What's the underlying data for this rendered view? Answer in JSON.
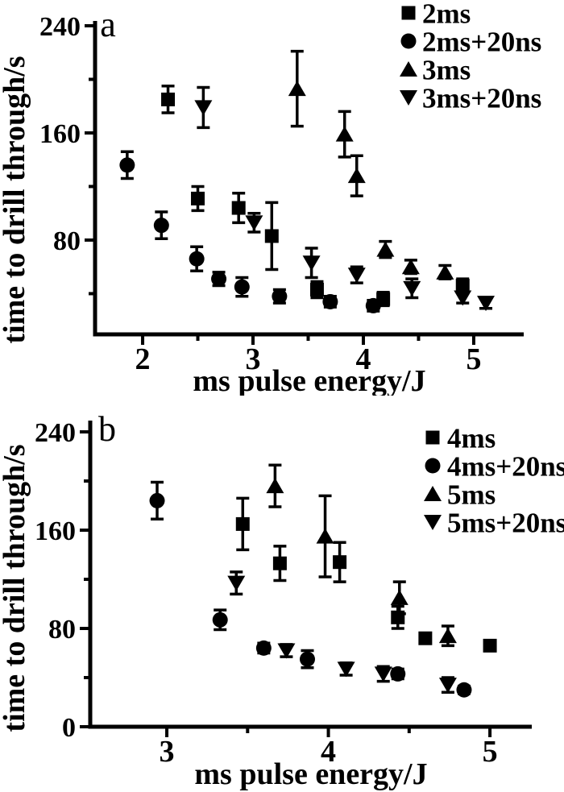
{
  "figure": {
    "background": "#ffffff",
    "ink": "#000000",
    "description_visible_text_only": "",
    "panels": [
      "a",
      "b"
    ]
  },
  "chart_data": [
    {
      "panel_label": "a",
      "type": "scatter",
      "title": "",
      "legend_position": "top-right",
      "axes": {
        "x": {
          "label": "ms pulse energy/J",
          "range": [
            1.569,
            5.453
          ],
          "major_ticks": [
            2,
            3,
            4,
            5
          ],
          "minor_ticks": [
            2.5,
            3.5,
            4.5
          ]
        },
        "y": {
          "label": "time to drill through/s",
          "range": [
            9.6,
            243.6
          ],
          "major_ticks": [
            240,
            160,
            80
          ],
          "minor_ticks": [
            200,
            120,
            40
          ],
          "labeled_ticks": [
            240,
            160,
            80
          ]
        }
      },
      "series": [
        {
          "name": "2ms",
          "marker": "square",
          "points": [
            [
              2.23,
              185,
              10
            ],
            [
              2.5,
              111,
              9
            ],
            [
              2.87,
              104,
              11
            ],
            [
              3.17,
              83,
              25
            ],
            [
              3.58,
              43,
              6
            ],
            [
              4.18,
              36,
              5
            ],
            [
              4.9,
              46,
              5
            ]
          ]
        },
        {
          "name": "2ms+20ns",
          "marker": "circle",
          "points": [
            [
              1.86,
              136,
              10
            ],
            [
              2.17,
              91,
              10
            ],
            [
              2.49,
              66,
              9
            ],
            [
              2.69,
              51,
              5
            ],
            [
              2.9,
              45,
              7
            ],
            [
              3.24,
              38,
              5
            ],
            [
              3.7,
              34,
              4
            ],
            [
              4.09,
              31,
              4
            ]
          ]
        },
        {
          "name": "3ms",
          "marker": "triangle-up",
          "points": [
            [
              3.4,
              193,
              28
            ],
            [
              3.83,
              159,
              17
            ],
            [
              3.94,
              128,
              15
            ],
            [
              4.2,
              73,
              6
            ],
            [
              4.43,
              60,
              5
            ],
            [
              4.74,
              56,
              5
            ]
          ]
        },
        {
          "name": "3ms+20ns",
          "marker": "triangle-down",
          "points": [
            [
              2.55,
              179,
              15
            ],
            [
              3.01,
              93,
              7
            ],
            [
              3.53,
              63,
              11
            ],
            [
              3.94,
              54,
              6
            ],
            [
              4.44,
              44,
              7
            ],
            [
              4.9,
              37,
              4
            ],
            [
              5.11,
              33,
              4
            ]
          ]
        }
      ]
    },
    {
      "panel_label": "b",
      "type": "scatter",
      "title": "",
      "legend_position": "top-right",
      "axes": {
        "x": {
          "label": "ms pulse energy/J",
          "range": [
            2.526,
            5.259
          ],
          "major_ticks": [
            3,
            4,
            5
          ],
          "minor_ticks": [
            3.5,
            4.5
          ]
        },
        "y": {
          "label": "time to drill through/s",
          "range": [
            0,
            249.2
          ],
          "major_ticks": [
            240,
            160,
            80,
            0
          ],
          "minor_ticks": [
            200,
            120,
            40
          ],
          "labeled_ticks": [
            240,
            160,
            80,
            0
          ]
        }
      },
      "series": [
        {
          "name": "4ms",
          "marker": "square",
          "points": [
            [
              3.47,
              165,
              21
            ],
            [
              3.7,
              133,
              14
            ],
            [
              4.07,
              134,
              16
            ],
            [
              4.43,
              89,
              9
            ],
            [
              4.6,
              72,
              3
            ],
            [
              5.0,
              66,
              3
            ]
          ]
        },
        {
          "name": "4ms+20ns",
          "marker": "circle",
          "points": [
            [
              2.94,
              184,
              15
            ],
            [
              3.33,
              87,
              8
            ],
            [
              3.6,
              64,
              4
            ],
            [
              3.87,
              55,
              7
            ],
            [
              4.43,
              43,
              4
            ],
            [
              4.84,
              30,
              3
            ]
          ]
        },
        {
          "name": "5ms",
          "marker": "triangle-up",
          "points": [
            [
              3.67,
              196,
              17
            ],
            [
              3.98,
              155,
              33
            ],
            [
              4.44,
              105,
              13
            ],
            [
              4.74,
              74,
              8
            ]
          ]
        },
        {
          "name": "5ms+20ns",
          "marker": "triangle-down",
          "points": [
            [
              3.43,
              117,
              9
            ],
            [
              3.74,
              62,
              5
            ],
            [
              4.11,
              47,
              5
            ],
            [
              4.34,
              43,
              6
            ],
            [
              4.74,
              34,
              6
            ]
          ]
        }
      ]
    }
  ]
}
